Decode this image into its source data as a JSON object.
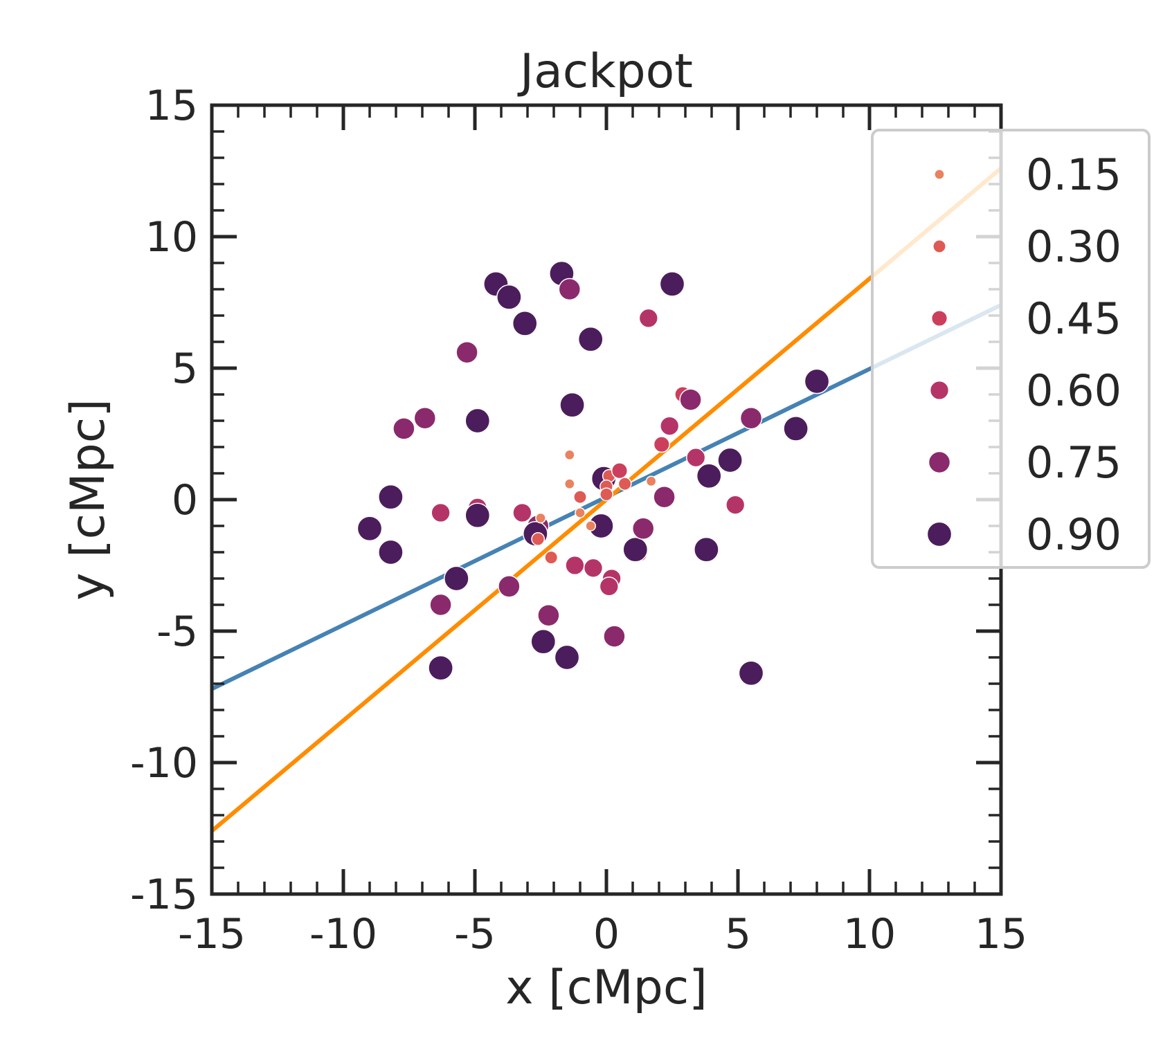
{
  "chart_data": {
    "type": "scatter",
    "title": "Jackpot",
    "xlabel": "x [cMpc]",
    "ylabel": "y [cMpc]",
    "xlim": [
      -15,
      15
    ],
    "ylim": [
      -15,
      15
    ],
    "grid": false,
    "xticks": [
      -15,
      -10,
      -5,
      0,
      5,
      10,
      15
    ],
    "yticks": [
      -15,
      -10,
      -5,
      0,
      5,
      10,
      15
    ],
    "xtick_labels": [
      "-15",
      "-10",
      "-5",
      "0",
      "5",
      "10",
      "15"
    ],
    "ytick_labels": [
      "-15",
      "-10",
      "-5",
      "0",
      "5",
      "10",
      "15"
    ],
    "minor_tick_step": 1,
    "legend": {
      "location": "upper-right",
      "entries": [
        {
          "label": "0.15",
          "value": 0.15,
          "color": "#e8825f"
        },
        {
          "label": "0.30",
          "value": 0.3,
          "color": "#de5a55"
        },
        {
          "label": "0.45",
          "value": 0.45,
          "color": "#cc3f5c"
        },
        {
          "label": "0.60",
          "value": 0.6,
          "color": "#b53468"
        },
        {
          "label": "0.75",
          "value": 0.75,
          "color": "#8a2a6c"
        },
        {
          "label": "0.90",
          "value": 0.9,
          "color": "#4c1d5c"
        }
      ]
    },
    "lines": [
      {
        "name": "blue-fit",
        "color": "#4682b4",
        "x": [
          -15,
          15
        ],
        "y": [
          -7.2,
          7.4
        ]
      },
      {
        "name": "orange-fit",
        "color": "#ff8c00",
        "x": [
          -15,
          15
        ],
        "y": [
          -12.6,
          12.6
        ]
      }
    ],
    "points": [
      {
        "x": -4.2,
        "y": 8.2,
        "v": 0.9
      },
      {
        "x": -3.7,
        "y": 7.7,
        "v": 0.9
      },
      {
        "x": -1.7,
        "y": 8.6,
        "v": 0.9
      },
      {
        "x": -1.4,
        "y": 8.0,
        "v": 0.75
      },
      {
        "x": -3.1,
        "y": 6.7,
        "v": 0.9
      },
      {
        "x": -0.6,
        "y": 6.1,
        "v": 0.9
      },
      {
        "x": 2.5,
        "y": 8.2,
        "v": 0.9
      },
      {
        "x": 1.6,
        "y": 6.9,
        "v": 0.6
      },
      {
        "x": -5.3,
        "y": 5.6,
        "v": 0.75
      },
      {
        "x": -1.3,
        "y": 3.6,
        "v": 0.9
      },
      {
        "x": -4.9,
        "y": 3.0,
        "v": 0.9
      },
      {
        "x": -6.9,
        "y": 3.1,
        "v": 0.75
      },
      {
        "x": -7.7,
        "y": 2.7,
        "v": 0.75
      },
      {
        "x": -8.2,
        "y": 0.1,
        "v": 0.9
      },
      {
        "x": -9.0,
        "y": -1.1,
        "v": 0.9
      },
      {
        "x": -8.2,
        "y": -2.0,
        "v": 0.9
      },
      {
        "x": -6.3,
        "y": -0.5,
        "v": 0.6
      },
      {
        "x": -4.9,
        "y": -0.3,
        "v": 0.6
      },
      {
        "x": -4.9,
        "y": -0.6,
        "v": 0.9
      },
      {
        "x": -3.2,
        "y": -0.5,
        "v": 0.6
      },
      {
        "x": -2.6,
        "y": -1.0,
        "v": 0.75
      },
      {
        "x": -2.7,
        "y": -1.3,
        "v": 0.9
      },
      {
        "x": -2.5,
        "y": -0.7,
        "v": 0.15
      },
      {
        "x": -2.6,
        "y": -1.5,
        "v": 0.3
      },
      {
        "x": -2.1,
        "y": -2.2,
        "v": 0.3
      },
      {
        "x": -5.7,
        "y": -3.0,
        "v": 0.9
      },
      {
        "x": -6.3,
        "y": -4.0,
        "v": 0.75
      },
      {
        "x": -3.7,
        "y": -3.3,
        "v": 0.75
      },
      {
        "x": -2.2,
        "y": -4.4,
        "v": 0.75
      },
      {
        "x": -2.4,
        "y": -5.4,
        "v": 0.9
      },
      {
        "x": -1.5,
        "y": -6.0,
        "v": 0.9
      },
      {
        "x": -6.3,
        "y": -6.4,
        "v": 0.9
      },
      {
        "x": -1.2,
        "y": -2.5,
        "v": 0.6
      },
      {
        "x": -0.5,
        "y": -2.6,
        "v": 0.6
      },
      {
        "x": 0.2,
        "y": -3.0,
        "v": 0.6
      },
      {
        "x": 0.1,
        "y": -3.3,
        "v": 0.6
      },
      {
        "x": 0.3,
        "y": -5.2,
        "v": 0.75
      },
      {
        "x": -0.2,
        "y": -1.0,
        "v": 0.9
      },
      {
        "x": -0.1,
        "y": 0.8,
        "v": 0.9
      },
      {
        "x": 0.1,
        "y": 0.9,
        "v": 0.3
      },
      {
        "x": 0.0,
        "y": 0.5,
        "v": 0.3
      },
      {
        "x": 0.0,
        "y": 0.2,
        "v": 0.3
      },
      {
        "x": 0.5,
        "y": 1.1,
        "v": 0.45
      },
      {
        "x": 0.7,
        "y": 0.6,
        "v": 0.3
      },
      {
        "x": -1.0,
        "y": 0.1,
        "v": 0.3
      },
      {
        "x": -1.4,
        "y": 1.7,
        "v": 0.15
      },
      {
        "x": -1.4,
        "y": 0.6,
        "v": 0.15
      },
      {
        "x": -1.0,
        "y": -0.5,
        "v": 0.15
      },
      {
        "x": -0.6,
        "y": -1.0,
        "v": 0.15
      },
      {
        "x": 1.7,
        "y": 0.7,
        "v": 0.15
      },
      {
        "x": 1.3,
        "y": -2.1,
        "v": 0.3
      },
      {
        "x": 1.1,
        "y": -1.9,
        "v": 0.9
      },
      {
        "x": 1.4,
        "y": -1.1,
        "v": 0.75
      },
      {
        "x": 2.1,
        "y": 2.1,
        "v": 0.45
      },
      {
        "x": 2.4,
        "y": 2.8,
        "v": 0.6
      },
      {
        "x": 2.2,
        "y": 0.1,
        "v": 0.75
      },
      {
        "x": 2.9,
        "y": 4.0,
        "v": 0.45
      },
      {
        "x": 3.2,
        "y": 3.8,
        "v": 0.75
      },
      {
        "x": 3.4,
        "y": 1.6,
        "v": 0.6
      },
      {
        "x": 3.9,
        "y": 0.9,
        "v": 0.9
      },
      {
        "x": 3.8,
        "y": -1.9,
        "v": 0.9
      },
      {
        "x": 4.7,
        "y": 1.5,
        "v": 0.9
      },
      {
        "x": 4.9,
        "y": -0.2,
        "v": 0.6
      },
      {
        "x": 5.5,
        "y": 3.1,
        "v": 0.75
      },
      {
        "x": 5.5,
        "y": -6.6,
        "v": 0.9
      },
      {
        "x": 7.2,
        "y": 2.7,
        "v": 0.9
      },
      {
        "x": 8.0,
        "y": 4.5,
        "v": 0.9
      }
    ]
  }
}
